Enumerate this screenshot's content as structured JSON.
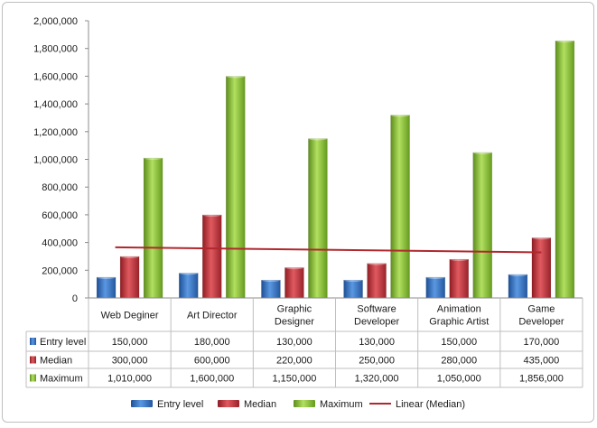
{
  "chart_data": {
    "type": "bar",
    "title": "",
    "xlabel": "",
    "ylabel": "",
    "ylim": [
      0,
      2000000
    ],
    "yticks": [
      0,
      200000,
      400000,
      600000,
      800000,
      1000000,
      1200000,
      1400000,
      1600000,
      1800000,
      2000000
    ],
    "ytick_labels": [
      "0",
      "200,000",
      "400,000",
      "600,000",
      "800,000",
      "1,000,000",
      "1,200,000",
      "1,400,000",
      "1,600,000",
      "1,800,000",
      "2,000,000"
    ],
    "grid": false,
    "legend_position": "bottom",
    "categories": [
      [
        "Web Deginer"
      ],
      [
        "Art Director"
      ],
      [
        "Graphic",
        "Designer"
      ],
      [
        "Software",
        "Developer"
      ],
      [
        "Animation",
        "Graphic Artist"
      ],
      [
        "Game",
        "Developer"
      ]
    ],
    "series": [
      {
        "name": "Entry level",
        "color": "#3a78c9",
        "values": [
          150000,
          180000,
          130000,
          130000,
          150000,
          170000
        ],
        "labels": [
          "150,000",
          "180,000",
          "130,000",
          "130,000",
          "150,000",
          "170,000"
        ]
      },
      {
        "name": "Median",
        "color": "#c8323a",
        "values": [
          300000,
          600000,
          220000,
          250000,
          280000,
          435000
        ],
        "labels": [
          "300,000",
          "600,000",
          "220,000",
          "250,000",
          "280,000",
          "435,000"
        ]
      },
      {
        "name": "Maximum",
        "color": "#8cc43a",
        "values": [
          1010000,
          1600000,
          1150000,
          1320000,
          1050000,
          1856000
        ],
        "labels": [
          "1,010,000",
          "1,600,000",
          "1,150,000",
          "1,320,000",
          "1,050,000",
          "1,856,000"
        ]
      }
    ],
    "trendline": {
      "name": "Linear (Median)",
      "color": "#b0282e"
    }
  }
}
